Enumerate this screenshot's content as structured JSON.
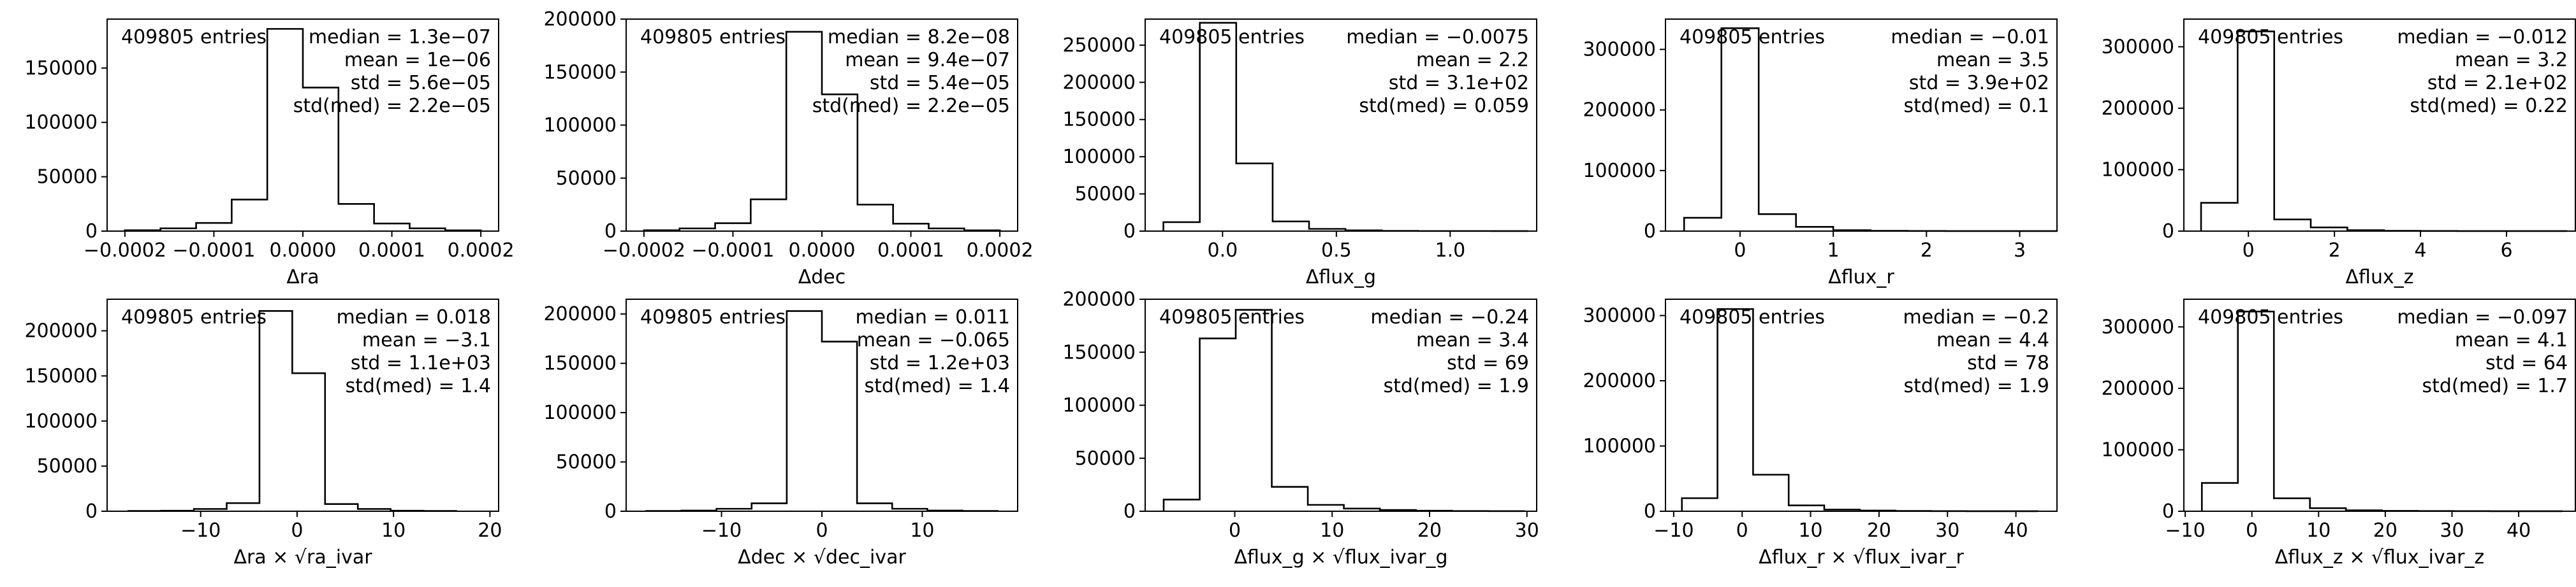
{
  "chart_data": [
    {
      "type": "histogram",
      "xlabel": "Δra",
      "xlim": [
        -0.00022,
        0.00022
      ],
      "ylim": [
        0,
        195000
      ],
      "xticks": [
        -0.0002,
        -0.0001,
        0.0,
        0.0001,
        0.0002
      ],
      "xtick_labels": [
        "−0.0002",
        "−0.0001",
        "0.0000",
        "0.0001",
        "0.0002"
      ],
      "yticks": [
        0,
        50000,
        100000,
        150000
      ],
      "ytick_labels": [
        "0",
        "50000",
        "100000",
        "150000"
      ],
      "bin_edges": [
        -0.0002,
        -0.00016,
        -0.00012,
        -8e-05,
        -4e-05,
        0.0,
        4e-05,
        8e-05,
        0.00012,
        0.00016,
        0.0002
      ],
      "counts": [
        800,
        2500,
        7500,
        29000,
        186000,
        132000,
        25000,
        7000,
        2500,
        700
      ],
      "entries_label": "409805 entries",
      "stats": [
        "median = 1.3e−07",
        "mean = 1e−06",
        "std = 5.6e−05",
        "std(med) = 2.2e−05"
      ]
    },
    {
      "type": "histogram",
      "xlabel": "Δdec",
      "xlim": [
        -0.00022,
        0.00022
      ],
      "ylim": [
        0,
        200000
      ],
      "xticks": [
        -0.0002,
        -0.0001,
        0.0,
        0.0001,
        0.0002
      ],
      "xtick_labels": [
        "−0.0002",
        "−0.0001",
        "0.0000",
        "0.0001",
        "0.0002"
      ],
      "yticks": [
        0,
        50000,
        100000,
        150000,
        200000
      ],
      "ytick_labels": [
        "0",
        "50000",
        "100000",
        "150000",
        "200000"
      ],
      "bin_edges": [
        -0.0002,
        -0.00016,
        -0.00012,
        -8e-05,
        -4e-05,
        0.0,
        4e-05,
        8e-05,
        0.00012,
        0.00016,
        0.0002
      ],
      "counts": [
        800,
        2500,
        7500,
        30000,
        188000,
        129000,
        25000,
        7000,
        2500,
        700
      ],
      "entries_label": "409805 entries",
      "stats": [
        "median = 8.2e−08",
        "mean = 9.4e−07",
        "std = 5.4e−05",
        "std(med) = 2.2e−05"
      ]
    },
    {
      "type": "histogram",
      "xlabel": "Δflux_g",
      "xlim": [
        -0.34,
        1.38
      ],
      "ylim": [
        0,
        285000
      ],
      "xticks": [
        0.0,
        0.5,
        1.0
      ],
      "xtick_labels": [
        "0.0",
        "0.5",
        "1.0"
      ],
      "yticks": [
        0,
        50000,
        100000,
        150000,
        200000,
        250000
      ],
      "ytick_labels": [
        "0",
        "50000",
        "100000",
        "150000",
        "200000",
        "250000"
      ],
      "bin_edges": [
        -0.26,
        -0.1,
        0.06,
        0.22,
        0.38,
        0.54,
        0.7,
        0.86,
        1.02,
        1.18,
        1.34
      ],
      "counts": [
        12000,
        280000,
        91000,
        13000,
        3000,
        1000,
        300,
        100,
        100,
        50
      ],
      "entries_label": "409805 entries",
      "stats": [
        "median = −0.0075",
        "mean = 2.2",
        "std = 3.1e+02",
        "std(med) = 0.059"
      ]
    },
    {
      "type": "histogram",
      "xlabel": "Δflux_r",
      "xlim": [
        -0.8,
        3.4
      ],
      "ylim": [
        0,
        350000
      ],
      "xticks": [
        0,
        1,
        2,
        3
      ],
      "xtick_labels": [
        "0",
        "1",
        "2",
        "3"
      ],
      "yticks": [
        0,
        100000,
        200000,
        300000
      ],
      "ytick_labels": [
        "0",
        "100000",
        "200000",
        "300000"
      ],
      "bin_edges": [
        -0.6,
        -0.2,
        0.2,
        0.6,
        1.0,
        1.4,
        1.8,
        2.2,
        2.6,
        3.0,
        3.4
      ],
      "counts": [
        22000,
        335000,
        28000,
        7000,
        1500,
        500,
        200,
        100,
        50,
        30
      ],
      "entries_label": "409805 entries",
      "stats": [
        "median = −0.01",
        "mean = 3.5",
        "std = 3.9e+02",
        "std(med) = 0.1"
      ]
    },
    {
      "type": "histogram",
      "xlabel": "Δflux_z",
      "xlim": [
        -1.5,
        7.6
      ],
      "ylim": [
        0,
        345000
      ],
      "xticks": [
        0,
        2,
        4,
        6
      ],
      "xtick_labels": [
        "0",
        "2",
        "4",
        "6"
      ],
      "yticks": [
        0,
        100000,
        200000,
        300000
      ],
      "ytick_labels": [
        "0",
        "100000",
        "200000",
        "300000"
      ],
      "bin_edges": [
        -1.1,
        -0.25,
        0.6,
        1.45,
        2.3,
        3.15,
        4.0,
        4.85,
        5.7,
        6.55,
        7.4
      ],
      "counts": [
        46000,
        325000,
        19000,
        6000,
        1500,
        500,
        200,
        100,
        50,
        30
      ],
      "entries_label": "409805 entries",
      "stats": [
        "median = −0.012",
        "mean = 3.2",
        "std = 2.1e+02",
        "std(med) = 0.22"
      ]
    },
    {
      "type": "histogram",
      "xlabel": "Δra × √ra_ivar",
      "xlim": [
        -19.7,
        20.9
      ],
      "ylim": [
        0,
        235000
      ],
      "xticks": [
        -10,
        0,
        10,
        20
      ],
      "xtick_labels": [
        "−10",
        "0",
        "10",
        "20"
      ],
      "yticks": [
        0,
        50000,
        100000,
        150000,
        200000
      ],
      "ytick_labels": [
        "0",
        "50000",
        "100000",
        "150000",
        "200000"
      ],
      "bin_edges": [
        -17.5,
        -14.1,
        -10.7,
        -7.3,
        -3.9,
        -0.5,
        2.9,
        6.3,
        9.7,
        13.1,
        16.5
      ],
      "counts": [
        300,
        600,
        2500,
        9000,
        222000,
        153000,
        8000,
        2500,
        600,
        300
      ],
      "entries_label": "409805 entries",
      "stats": [
        "median = 0.018",
        "mean = −3.1",
        "std = 1.1e+03",
        "std(med) = 1.4"
      ]
    },
    {
      "type": "histogram",
      "xlabel": "Δdec × √dec_ivar",
      "xlim": [
        -19.5,
        19.5
      ],
      "ylim": [
        0,
        215000
      ],
      "xticks": [
        -10,
        0,
        10
      ],
      "xtick_labels": [
        "−10",
        "0",
        "10"
      ],
      "yticks": [
        0,
        50000,
        100000,
        150000,
        200000
      ],
      "ytick_labels": [
        "0",
        "50000",
        "100000",
        "150000",
        "200000"
      ],
      "bin_edges": [
        -17.5,
        -14.0,
        -10.5,
        -7.0,
        -3.5,
        0.0,
        3.5,
        7.0,
        10.5,
        14.0,
        17.5
      ],
      "counts": [
        300,
        700,
        2500,
        8000,
        203000,
        172000,
        8000,
        2500,
        700,
        300
      ],
      "entries_label": "409805 entries",
      "stats": [
        "median = 0.011",
        "mean = −0.065",
        "std = 1.2e+03",
        "std(med) = 1.4"
      ]
    },
    {
      "type": "histogram",
      "xlabel": "Δflux_g × √flux_ivar_g",
      "xlim": [
        -9.2,
        31.0
      ],
      "ylim": [
        0,
        200000
      ],
      "xticks": [
        0,
        10,
        20,
        30
      ],
      "xtick_labels": [
        "0",
        "10",
        "20",
        "30"
      ],
      "yticks": [
        0,
        50000,
        100000,
        150000,
        200000
      ],
      "ytick_labels": [
        "0",
        "50000",
        "100000",
        "150000",
        "200000"
      ],
      "bin_edges": [
        -7.3,
        -3.6,
        0.1,
        3.8,
        7.5,
        11.2,
        14.9,
        18.6,
        22.3,
        26.0,
        29.7
      ],
      "counts": [
        11000,
        163000,
        190000,
        23000,
        6000,
        2500,
        1200,
        500,
        200,
        100
      ],
      "entries_label": "409805 entries",
      "stats": [
        "median = −0.24",
        "mean = 3.4",
        "std = 69",
        "std(med) = 1.9"
      ]
    },
    {
      "type": "histogram",
      "xlabel": "Δflux_r × √flux_ivar_r",
      "xlim": [
        -11.2,
        46.0
      ],
      "ylim": [
        0,
        325000
      ],
      "xticks": [
        -10,
        0,
        10,
        20,
        30,
        40
      ],
      "xtick_labels": [
        "−10",
        "0",
        "10",
        "20",
        "30",
        "40"
      ],
      "yticks": [
        0,
        100000,
        200000,
        300000
      ],
      "ytick_labels": [
        "0",
        "100000",
        "200000",
        "300000"
      ],
      "bin_edges": [
        -8.8,
        -3.6,
        1.6,
        6.8,
        12.0,
        17.2,
        22.4,
        27.6,
        32.8,
        38.0,
        43.2
      ],
      "counts": [
        20000,
        310000,
        56000,
        9000,
        2500,
        1000,
        500,
        200,
        100,
        50
      ],
      "entries_label": "409805 entries",
      "stats": [
        "median = −0.2",
        "mean = 4.4",
        "std = 78",
        "std(med) = 1.9"
      ]
    },
    {
      "type": "histogram",
      "xlabel": "Δflux_z × √flux_ivar_z",
      "xlim": [
        -10.2,
        48.5
      ],
      "ylim": [
        0,
        345000
      ],
      "xticks": [
        -10,
        0,
        10,
        20,
        30,
        40
      ],
      "xtick_labels": [
        "−10",
        "0",
        "10",
        "20",
        "30",
        "40"
      ],
      "bin_edges": [
        -7.5,
        -2.1,
        3.3,
        8.7,
        14.1,
        19.5,
        24.9,
        30.3,
        35.7,
        41.1,
        46.5
      ],
      "counts": [
        46000,
        325000,
        21000,
        5000,
        1500,
        600,
        300,
        150,
        80,
        40
      ],
      "yticks": [
        0,
        100000,
        200000,
        300000
      ],
      "ytick_labels": [
        "0",
        "100000",
        "200000",
        "300000"
      ],
      "entries_label": "409805 entries",
      "stats": [
        "median = −0.097",
        "mean = 4.1",
        "std = 64",
        "std(med) = 1.7"
      ]
    }
  ]
}
